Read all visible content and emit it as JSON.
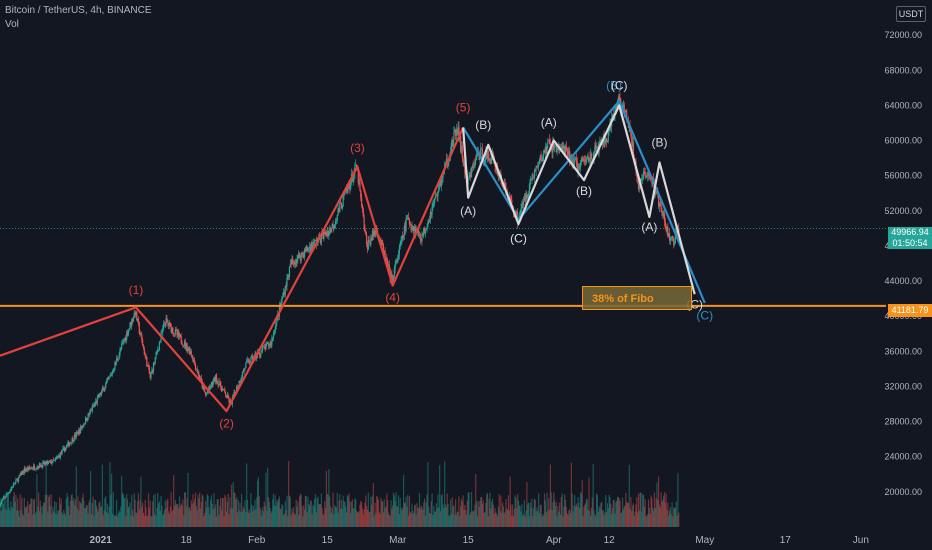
{
  "legend": {
    "symbol": "Bitcoin / TetherUS, 4h, BINANCE",
    "volume_label": "Vol"
  },
  "currency": "USDT",
  "price_tags": {
    "current_price": "49966.94",
    "countdown": "01:50:54",
    "level_price": "41181.79"
  },
  "fibo_label": "38% of Fibo",
  "colors": {
    "background": "#131722",
    "impulse_wave": "#e3423c",
    "corrective_blue": "#2b8ec7",
    "corrective_white": "#d9d9d9",
    "level_line": "#f7931a",
    "up_candle": "#26a69a",
    "down_candle": "#ef5350"
  },
  "chart_data": {
    "type": "candlestick",
    "title": "Bitcoin / TetherUS, 4h, BINANCE",
    "ylim": [
      16000,
      76000
    ],
    "y_ticks": [
      "72000.00",
      "68000.00",
      "64000.00",
      "60000.00",
      "56000.00",
      "52000.00",
      "48000.00",
      "44000.00",
      "40000.00",
      "36000.00",
      "32000.00",
      "28000.00",
      "24000.00",
      "20000.00"
    ],
    "y_tick_values": [
      72000,
      68000,
      64000,
      60000,
      56000,
      52000,
      48000,
      44000,
      40000,
      36000,
      32000,
      28000,
      24000,
      20000
    ],
    "x_ticks": [
      "2021",
      "18",
      "Feb",
      "15",
      "Mar",
      "15",
      "Apr",
      "12",
      "May",
      "17",
      "Jun"
    ],
    "x_tick_dates": [
      "2021-01-01",
      "2021-01-18",
      "2021-02-01",
      "2021-02-15",
      "2021-03-01",
      "2021-03-15",
      "2021-04-01",
      "2021-04-12",
      "2021-05-01",
      "2021-05-17",
      "2021-06-01"
    ],
    "x_range": [
      "2020-12-12",
      "2021-06-06"
    ],
    "price_path": [
      [
        "2020-12-12",
        18500
      ],
      [
        "2020-12-17",
        22500
      ],
      [
        "2020-12-23",
        23500
      ],
      [
        "2020-12-28",
        27000
      ],
      [
        "2021-01-03",
        33000
      ],
      [
        "2021-01-08",
        40500
      ],
      [
        "2021-01-11",
        33000
      ],
      [
        "2021-01-14",
        39500
      ],
      [
        "2021-01-19",
        36000
      ],
      [
        "2021-01-22",
        31000
      ],
      [
        "2021-01-24",
        33000
      ],
      [
        "2021-01-27",
        30000
      ],
      [
        "2021-01-30",
        34500
      ],
      [
        "2021-02-04",
        37000
      ],
      [
        "2021-02-08",
        46000
      ],
      [
        "2021-02-12",
        48000
      ],
      [
        "2021-02-16",
        50000
      ],
      [
        "2021-02-21",
        57000
      ],
      [
        "2021-02-23",
        48000
      ],
      [
        "2021-02-25",
        50000
      ],
      [
        "2021-02-28",
        44000
      ],
      [
        "2021-03-03",
        51000
      ],
      [
        "2021-03-06",
        49000
      ],
      [
        "2021-03-09",
        54000
      ],
      [
        "2021-03-13",
        61500
      ],
      [
        "2021-03-15",
        55000
      ],
      [
        "2021-03-17",
        58500
      ],
      [
        "2021-03-20",
        58000
      ],
      [
        "2021-03-25",
        51000
      ],
      [
        "2021-03-28",
        56000
      ],
      [
        "2021-03-31",
        59500
      ],
      [
        "2021-04-03",
        59000
      ],
      [
        "2021-04-06",
        57000
      ],
      [
        "2021-04-09",
        58500
      ],
      [
        "2021-04-12",
        60500
      ],
      [
        "2021-04-14",
        64800
      ],
      [
        "2021-04-16",
        62000
      ],
      [
        "2021-04-18",
        55000
      ],
      [
        "2021-04-20",
        56500
      ],
      [
        "2021-04-22",
        53000
      ],
      [
        "2021-04-24",
        49000
      ],
      [
        "2021-04-25",
        48500
      ],
      [
        "2021-04-26",
        50000
      ]
    ],
    "current_price": 49966.94,
    "horizontal_level": 41181.79,
    "volume_scale_max": 15000,
    "series": [
      {
        "name": "",
        "color": "#e3423c",
        "points": [
          [
            "2020-12-12",
            35500
          ],
          [
            "2021-01-08",
            41000
          ],
          [
            "2021-01-26",
            29200
          ],
          [
            "2021-02-21",
            57000
          ],
          [
            "2021-02-28",
            43500
          ],
          [
            "2021-03-14",
            61500
          ]
        ]
      },
      {
        "name": "",
        "color": "#2b8ec7",
        "points": [
          [
            "2021-03-14",
            61500
          ],
          [
            "2021-03-25",
            51000
          ],
          [
            "2021-04-14",
            64500
          ],
          [
            "2021-05-01",
            41500
          ]
        ]
      },
      {
        "name": "",
        "color": "#d9d9d9",
        "points": [
          [
            "2021-03-14",
            61500
          ],
          [
            "2021-03-15",
            53500
          ],
          [
            "2021-03-19",
            59500
          ],
          [
            "2021-03-25",
            50500
          ],
          [
            "2021-04-01",
            60000
          ],
          [
            "2021-04-07",
            55500
          ],
          [
            "2021-04-14",
            64000
          ],
          [
            "2021-04-20",
            51300
          ],
          [
            "2021-04-22",
            57500
          ],
          [
            "2021-04-29",
            42500
          ]
        ]
      }
    ],
    "wave_labels": [
      {
        "text": "(1)",
        "date": "2021-01-08",
        "price": 42500,
        "color": "#e3423c"
      },
      {
        "text": "(2)",
        "date": "2021-01-26",
        "price": 27300,
        "color": "#e3423c"
      },
      {
        "text": "(3)",
        "date": "2021-02-21",
        "price": 58700,
        "color": "#e3423c"
      },
      {
        "text": "(4)",
        "date": "2021-02-28",
        "price": 41700,
        "color": "#e3423c"
      },
      {
        "text": "(5)",
        "date": "2021-03-14",
        "price": 63300,
        "color": "#e3423c"
      },
      {
        "text": "(A)",
        "date": "2021-03-15",
        "price": 51500,
        "color": "#d9d9d9"
      },
      {
        "text": "(B)",
        "date": "2021-03-18",
        "price": 61300,
        "color": "#d9d9d9"
      },
      {
        "text": "(C)",
        "date": "2021-03-25",
        "price": 48400,
        "color": "#2b8ec7"
      },
      {
        "text": "(C)",
        "date": "2021-03-25",
        "price": 48400,
        "color": "#d9d9d9"
      },
      {
        "text": "(A)",
        "date": "2021-03-31",
        "price": 61600,
        "color": "#d9d9d9"
      },
      {
        "text": "(B)",
        "date": "2021-04-07",
        "price": 53800,
        "color": "#d9d9d9"
      },
      {
        "text": "(B)",
        "date": "2021-04-13",
        "price": 65800,
        "color": "#2b8ec7"
      },
      {
        "text": "(C)",
        "date": "2021-04-14",
        "price": 65800,
        "color": "#d9d9d9"
      },
      {
        "text": "(A)",
        "date": "2021-04-20",
        "price": 49700,
        "color": "#d9d9d9"
      },
      {
        "text": "(B)",
        "date": "2021-04-22",
        "price": 59300,
        "color": "#d9d9d9"
      },
      {
        "text": "(C)",
        "date": "2021-04-29",
        "price": 40900,
        "color": "#d9d9d9"
      },
      {
        "text": "(C)",
        "date": "2021-05-01",
        "price": 39600,
        "color": "#2b8ec7"
      }
    ],
    "annotation": {
      "text": "38% of Fibo",
      "price": 42500
    },
    "legend": "none",
    "grid": false
  }
}
